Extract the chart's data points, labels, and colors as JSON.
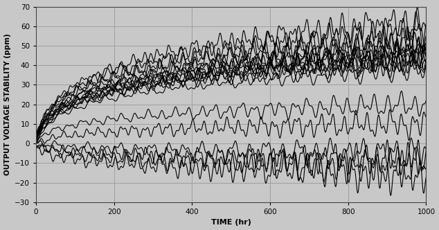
{
  "xlim": [
    0,
    1000
  ],
  "ylim": [
    -30,
    70
  ],
  "xticks": [
    0,
    200,
    400,
    600,
    800,
    1000
  ],
  "yticks": [
    -30,
    -20,
    -10,
    0,
    10,
    20,
    30,
    40,
    50,
    60,
    70
  ],
  "xlabel": "TIME (hr)",
  "ylabel": "OUTPUT VOLTAGE STABILITY (ppm)",
  "background_color": "#c8c8c8",
  "plot_bg_color": "#c8c8c8",
  "line_color": "#000000",
  "line_width": 0.8,
  "num_points": 3000,
  "seed": 7,
  "grid_color": "#999999",
  "grid_linewidth": 0.6,
  "curve_params": [
    [
      42,
      2,
      1.5,
      7,
      0.03
    ],
    [
      46,
      3,
      1.5,
      8,
      0.028
    ],
    [
      44,
      1,
      1.5,
      7,
      0.033
    ],
    [
      48,
      4,
      1.5,
      8,
      0.025
    ],
    [
      50,
      2,
      1.5,
      9,
      0.035
    ],
    [
      40,
      5,
      1.5,
      7,
      0.027
    ],
    [
      43,
      0,
      1.5,
      8,
      0.031
    ],
    [
      55,
      3,
      2.0,
      10,
      0.032
    ],
    [
      58,
      4,
      2.0,
      11,
      0.029
    ],
    [
      38,
      1,
      1.5,
      7,
      0.026
    ],
    [
      47,
      2,
      1.5,
      8,
      0.034
    ],
    [
      52,
      5,
      2.0,
      9,
      0.03
    ],
    [
      45,
      3,
      1.5,
      8,
      0.028
    ],
    [
      62,
      2,
      2.0,
      11,
      0.033
    ],
    [
      20,
      1,
      1.5,
      8,
      0.027
    ],
    [
      10,
      0,
      2.0,
      9,
      0.031
    ],
    [
      -8,
      -1,
      2.5,
      11,
      0.035
    ],
    [
      -12,
      0,
      2.5,
      12,
      0.03
    ],
    [
      -5,
      1,
      2.0,
      10,
      0.028
    ],
    [
      -15,
      -2,
      3.0,
      13,
      0.032
    ]
  ]
}
